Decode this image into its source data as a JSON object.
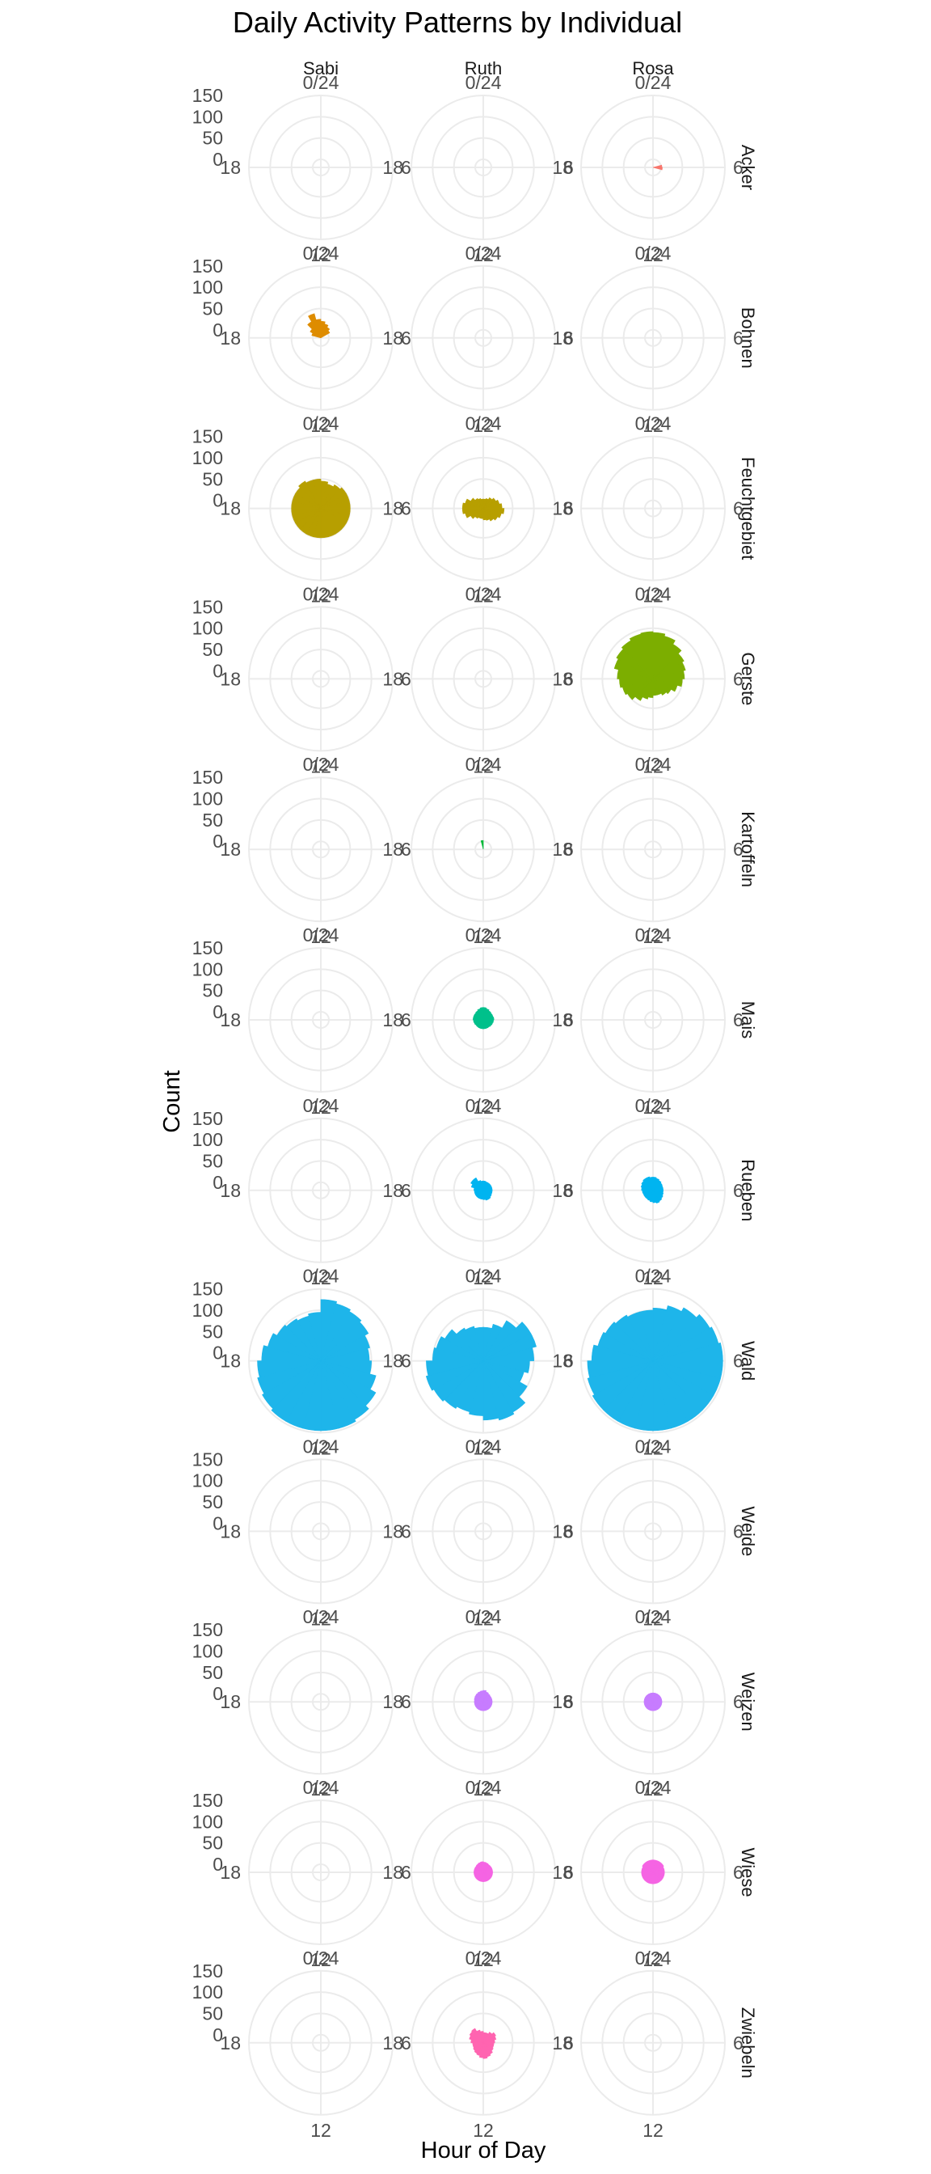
{
  "chart_data": {
    "type": "polar-bar",
    "title": "Daily Activity Patterns by Individual",
    "xlabel": "Hour of Day",
    "ylabel": "Count",
    "individuals": [
      "Sabi",
      "Ruth",
      "Rosa"
    ],
    "habitats": [
      "Acker",
      "Bohnen",
      "Feuchtgebiet",
      "Gerste",
      "Kartoffeln",
      "Mais",
      "Rueben",
      "Wald",
      "Weide",
      "Weizen",
      "Wiese",
      "Zwiebeln"
    ],
    "angle_ticks": [
      "0/24",
      "6",
      "12",
      "18"
    ],
    "radial_ticks": [
      0,
      50,
      100,
      150
    ],
    "radial_tick_labels": [
      "0",
      "50",
      "100",
      "150"
    ],
    "ylim": [
      0,
      150
    ],
    "hours": [
      0,
      1,
      2,
      3,
      4,
      5,
      6,
      7,
      8,
      9,
      10,
      11,
      12,
      13,
      14,
      15,
      16,
      17,
      18,
      19,
      20,
      21,
      22,
      23
    ],
    "habitat_colors": {
      "Acker": "#F8766D",
      "Bohnen": "#DE8C00",
      "Feuchtgebiet": "#B79F00",
      "Gerste": "#7CAE00",
      "Kartoffeln": "#00BA38",
      "Mais": "#00C08B",
      "Rueben": "#00B4F0",
      "Wald": "#1EB5EA",
      "Weide": "#619CFF",
      "Weizen": "#C77CFF",
      "Wiese": "#F564E3",
      "Zwiebeln": "#FF64B0"
    },
    "counts": {
      "Sabi": {
        "Acker": [
          0,
          0,
          0,
          0,
          0,
          0,
          0,
          0,
          0,
          0,
          0,
          0,
          0,
          0,
          0,
          0,
          0,
          0,
          0,
          0,
          0,
          0,
          0,
          0
        ],
        "Bohnen": [
          20,
          15,
          10,
          5,
          0,
          0,
          0,
          0,
          0,
          0,
          0,
          0,
          0,
          0,
          0,
          0,
          0,
          0,
          0,
          3,
          10,
          25,
          40,
          25
        ],
        "Feuchtgebiet": [
          45,
          40,
          45,
          50,
          50,
          50,
          50,
          50,
          50,
          50,
          50,
          50,
          50,
          50,
          50,
          50,
          50,
          50,
          50,
          50,
          50,
          55,
          50,
          50
        ],
        "Gerste": [
          0,
          0,
          0,
          0,
          0,
          0,
          0,
          0,
          0,
          0,
          0,
          0,
          0,
          0,
          0,
          0,
          0,
          0,
          0,
          0,
          0,
          0,
          0,
          0
        ],
        "Kartoffeln": [
          0,
          0,
          0,
          0,
          0,
          0,
          0,
          0,
          0,
          0,
          0,
          0,
          0,
          0,
          0,
          0,
          0,
          0,
          0,
          0,
          0,
          0,
          0,
          0
        ],
        "Mais": [
          0,
          0,
          0,
          0,
          0,
          0,
          0,
          0,
          0,
          0,
          0,
          0,
          0,
          0,
          0,
          0,
          0,
          0,
          0,
          0,
          0,
          0,
          0,
          0
        ],
        "Rueben": [
          0,
          0,
          0,
          0,
          0,
          0,
          0,
          0,
          0,
          0,
          0,
          0,
          0,
          0,
          0,
          0,
          0,
          0,
          0,
          0,
          0,
          0,
          0,
          0
        ],
        "Wald": [
          125,
          120,
          115,
          110,
          100,
          95,
          100,
          115,
          130,
          140,
          145,
          145,
          145,
          145,
          145,
          140,
          135,
          130,
          120,
          110,
          100,
          95,
          90,
          95
        ],
        "Weide": [
          0,
          0,
          0,
          0,
          0,
          0,
          0,
          0,
          0,
          0,
          0,
          0,
          0,
          0,
          0,
          0,
          0,
          0,
          0,
          0,
          0,
          0,
          0,
          0
        ],
        "Weizen": [
          0,
          0,
          0,
          0,
          0,
          0,
          0,
          0,
          0,
          0,
          0,
          0,
          0,
          0,
          0,
          0,
          0,
          0,
          0,
          0,
          0,
          0,
          0,
          0
        ],
        "Wiese": [
          0,
          0,
          0,
          0,
          0,
          0,
          0,
          0,
          0,
          0,
          0,
          0,
          0,
          0,
          0,
          0,
          0,
          0,
          0,
          0,
          0,
          0,
          0,
          0
        ],
        "Zwiebeln": [
          0,
          0,
          0,
          0,
          0,
          0,
          0,
          0,
          0,
          0,
          0,
          0,
          0,
          0,
          0,
          0,
          0,
          0,
          0,
          0,
          0,
          0,
          0,
          0
        ]
      },
      "Ruth": {
        "Acker": [
          0,
          0,
          0,
          0,
          0,
          0,
          0,
          0,
          0,
          0,
          0,
          0,
          0,
          0,
          0,
          0,
          0,
          0,
          0,
          0,
          0,
          0,
          0,
          0
        ],
        "Bohnen": [
          0,
          0,
          0,
          0,
          0,
          0,
          0,
          0,
          0,
          0,
          0,
          0,
          0,
          0,
          0,
          0,
          0,
          0,
          0,
          0,
          0,
          0,
          0,
          0
        ],
        "Feuchtgebiet": [
          3,
          5,
          10,
          15,
          20,
          25,
          30,
          25,
          20,
          15,
          10,
          8,
          5,
          5,
          8,
          15,
          25,
          30,
          30,
          25,
          15,
          8,
          5,
          3
        ],
        "Gerste": [
          0,
          0,
          0,
          0,
          0,
          0,
          0,
          0,
          0,
          0,
          0,
          0,
          0,
          0,
          0,
          0,
          0,
          0,
          0,
          0,
          0,
          0,
          0,
          0
        ],
        "Kartoffeln": [
          0,
          0,
          0,
          0,
          0,
          0,
          0,
          0,
          0,
          0,
          0,
          0,
          0,
          0,
          0,
          0,
          0,
          0,
          0,
          0,
          0,
          0,
          0,
          2
        ],
        "Mais": [
          10,
          8,
          6,
          5,
          5,
          6,
          5,
          4,
          3,
          2,
          2,
          2,
          2,
          2,
          2,
          2,
          3,
          4,
          5,
          5,
          5,
          6,
          8,
          10
        ],
        "Rueben": [
          3,
          2,
          2,
          2,
          2,
          2,
          2,
          2,
          3,
          5,
          5,
          3,
          2,
          2,
          2,
          2,
          2,
          2,
          3,
          10,
          15,
          15,
          5,
          3
        ],
        "Wald": [
          60,
          70,
          90,
          110,
          110,
          100,
          90,
          80,
          100,
          120,
          125,
          120,
          110,
          105,
          110,
          115,
          120,
          115,
          100,
          95,
          85,
          70,
          65,
          60
        ],
        "Weide": [
          0,
          0,
          0,
          0,
          0,
          0,
          0,
          0,
          0,
          0,
          0,
          0,
          0,
          0,
          0,
          0,
          0,
          0,
          0,
          0,
          0,
          0,
          0,
          0
        ],
        "Weizen": [
          8,
          5,
          3,
          2,
          2,
          2,
          2,
          2,
          2,
          2,
          2,
          2,
          2,
          2,
          2,
          2,
          2,
          2,
          2,
          3,
          4,
          5,
          6,
          7
        ],
        "Wiese": [
          5,
          4,
          3,
          3,
          3,
          3,
          3,
          3,
          3,
          3,
          3,
          3,
          3,
          3,
          3,
          3,
          3,
          3,
          3,
          3,
          3,
          4,
          5,
          6
        ],
        "Zwiebeln": [
          5,
          5,
          10,
          15,
          12,
          8,
          6,
          6,
          8,
          12,
          15,
          18,
          16,
          12,
          10,
          8,
          6,
          6,
          10,
          15,
          18,
          20,
          12,
          8
        ]
      },
      "Rosa": {
        "Acker": [
          0,
          0,
          0,
          0,
          0,
          2,
          3,
          0,
          0,
          0,
          0,
          0,
          0,
          0,
          0,
          0,
          0,
          0,
          0,
          0,
          0,
          0,
          0,
          0
        ],
        "Bohnen": [
          0,
          0,
          0,
          0,
          0,
          0,
          0,
          0,
          0,
          0,
          0,
          0,
          0,
          0,
          0,
          0,
          0,
          0,
          0,
          0,
          0,
          0,
          0,
          0
        ],
        "Feuchtgebiet": [
          0,
          0,
          0,
          0,
          0,
          0,
          0,
          0,
          0,
          0,
          0,
          0,
          0,
          0,
          0,
          0,
          0,
          0,
          0,
          0,
          0,
          0,
          0,
          0
        ],
        "Gerste": [
          90,
          85,
          75,
          65,
          60,
          55,
          50,
          40,
          30,
          25,
          20,
          20,
          25,
          30,
          40,
          50,
          55,
          60,
          65,
          75,
          80,
          85,
          90,
          92
        ],
        "Kartoffeln": [
          0,
          0,
          0,
          0,
          0,
          0,
          0,
          0,
          0,
          0,
          0,
          0,
          0,
          0,
          0,
          0,
          0,
          0,
          0,
          0,
          0,
          0,
          0,
          0
        ],
        "Mais": [
          0,
          0,
          0,
          0,
          0,
          0,
          0,
          0,
          0,
          0,
          0,
          0,
          0,
          0,
          0,
          0,
          0,
          0,
          0,
          0,
          0,
          0,
          0,
          0
        ],
        "Rueben": [
          12,
          10,
          8,
          6,
          5,
          5,
          5,
          6,
          8,
          10,
          12,
          10,
          8,
          6,
          5,
          5,
          5,
          6,
          8,
          10,
          12,
          14,
          14,
          12
        ],
        "Wald": [
          105,
          115,
          125,
          135,
          140,
          145,
          145,
          145,
          145,
          145,
          145,
          145,
          145,
          145,
          145,
          145,
          140,
          135,
          125,
          115,
          110,
          105,
          100,
          100
        ],
        "Weide": [
          0,
          0,
          0,
          0,
          0,
          0,
          0,
          0,
          0,
          0,
          0,
          0,
          0,
          0,
          0,
          0,
          0,
          0,
          0,
          0,
          0,
          0,
          0,
          0
        ],
        "Weizen": [
          2,
          2,
          2,
          2,
          2,
          2,
          2,
          2,
          2,
          2,
          2,
          2,
          2,
          2,
          2,
          2,
          2,
          2,
          2,
          2,
          2,
          2,
          2,
          2
        ],
        "Wiese": [
          10,
          10,
          10,
          10,
          8,
          8,
          8,
          8,
          8,
          8,
          8,
          8,
          8,
          8,
          8,
          8,
          8,
          8,
          8,
          8,
          10,
          10,
          10,
          10
        ],
        "Zwiebeln": [
          0,
          0,
          0,
          0,
          0,
          0,
          0,
          0,
          0,
          0,
          0,
          0,
          0,
          0,
          0,
          0,
          0,
          0,
          0,
          0,
          0,
          0,
          0,
          0
        ]
      }
    },
    "grid": true,
    "legend": "none"
  }
}
